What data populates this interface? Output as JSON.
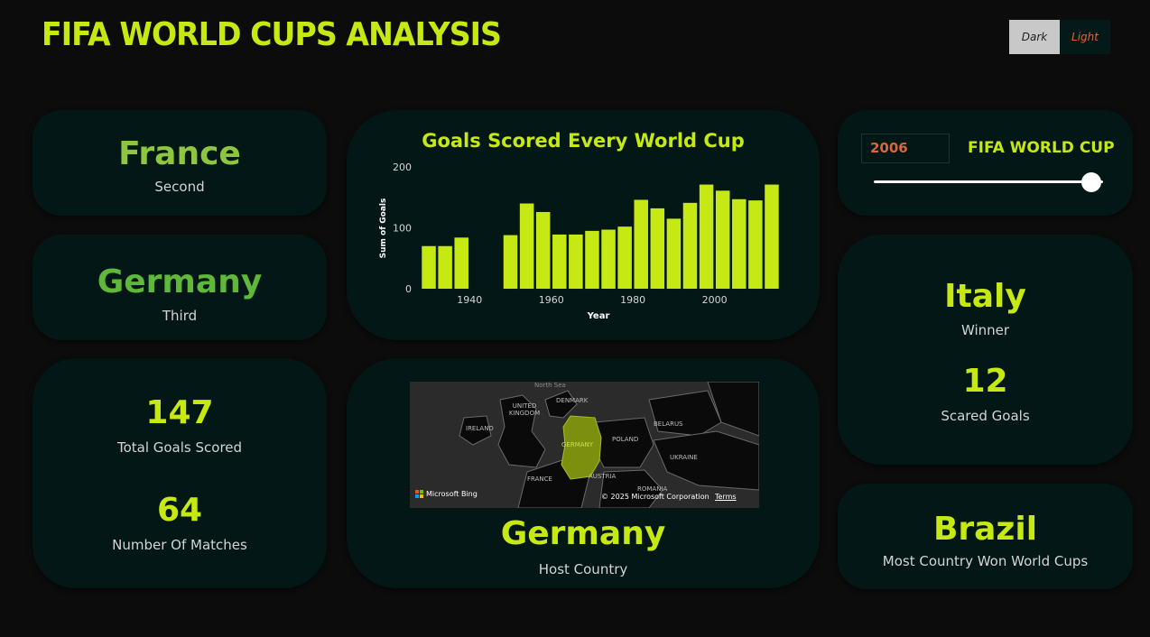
{
  "header": {
    "title": "FIFA WORLD CUPS ANALYSIS"
  },
  "theme_toggle": {
    "dark_label": "Dark",
    "light_label": "Light"
  },
  "second_card": {
    "value": "France",
    "label": "Second",
    "color": "#8fc63f"
  },
  "third_card": {
    "value": "Germany",
    "label": "Third",
    "color": "#5fb83a"
  },
  "totals_card": {
    "goals_value": "147",
    "goals_label": "Total Goals Scored",
    "matches_value": "64",
    "matches_label": "Number Of Matches"
  },
  "chart_data": {
    "type": "bar",
    "title": "Goals Scored Every World Cup",
    "xlabel": "Year",
    "ylabel": "Sum of Goals",
    "ylim": [
      0,
      200
    ],
    "yticks": [
      0,
      100,
      200
    ],
    "xticks": [
      1940,
      1960,
      1980,
      2000
    ],
    "x": [
      1930,
      1934,
      1938,
      1950,
      1954,
      1958,
      1962,
      1966,
      1970,
      1974,
      1978,
      1982,
      1986,
      1990,
      1994,
      1998,
      2002,
      2006,
      2010,
      2014
    ],
    "values": [
      70,
      70,
      84,
      88,
      140,
      126,
      89,
      89,
      95,
      97,
      102,
      146,
      132,
      115,
      141,
      171,
      161,
      147,
      145,
      171
    ],
    "color": "#c6e813",
    "grid": false
  },
  "map_card": {
    "value": "Germany",
    "label": "Host Country",
    "map_labels": [
      "North Sea",
      "DENMARK",
      "UNITED KINGDOM",
      "IRELAND",
      "GERMANY",
      "POLAND",
      "BELARUS",
      "UKRAINE",
      "FRANCE",
      "AUSTRIA",
      "ROMANIA"
    ],
    "attribution": "© 2025 Microsoft Corporation",
    "terms": "Terms",
    "brand": "Microsoft Bing"
  },
  "slider_card": {
    "year": "2006",
    "label": "FIFA WORLD CUP",
    "position": 0.95
  },
  "winner_card": {
    "value": "Italy",
    "label": "Winner",
    "goals_value": "12",
    "goals_label": "Scared Goals"
  },
  "most_card": {
    "value": "Brazil",
    "label": "Most Country Won World Cups"
  },
  "colors": {
    "accent": "#c6e813",
    "card_bg": "#031716",
    "page_bg": "#0b0c0b",
    "year_text": "#d8683c"
  }
}
